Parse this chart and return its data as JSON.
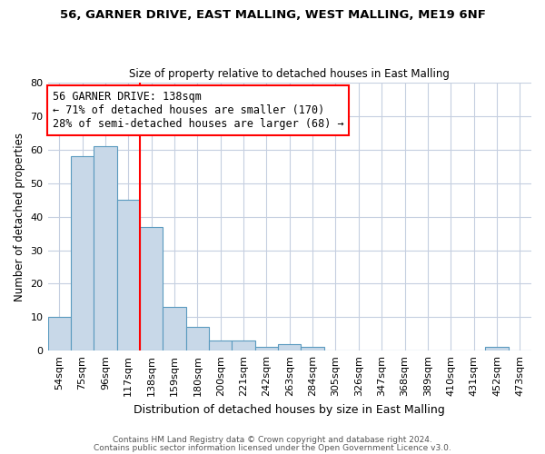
{
  "title1": "56, GARNER DRIVE, EAST MALLING, WEST MALLING, ME19 6NF",
  "title2": "Size of property relative to detached houses in East Malling",
  "xlabel": "Distribution of detached houses by size in East Malling",
  "ylabel": "Number of detached properties",
  "categories": [
    "54sqm",
    "75sqm",
    "96sqm",
    "117sqm",
    "138sqm",
    "159sqm",
    "180sqm",
    "200sqm",
    "221sqm",
    "242sqm",
    "263sqm",
    "284sqm",
    "305sqm",
    "326sqm",
    "347sqm",
    "368sqm",
    "389sqm",
    "410sqm",
    "431sqm",
    "452sqm",
    "473sqm"
  ],
  "values": [
    10,
    58,
    61,
    45,
    37,
    13,
    7,
    3,
    3,
    1,
    2,
    1,
    0,
    0,
    0,
    0,
    0,
    0,
    0,
    1,
    0
  ],
  "bar_color": "#c8d8e8",
  "bar_edge_color": "#5a9abf",
  "red_line_index": 3,
  "annotation_line1": "56 GARNER DRIVE: 138sqm",
  "annotation_line2": "← 71% of detached houses are smaller (170)",
  "annotation_line3": "28% of semi-detached houses are larger (68) →",
  "ylim": [
    0,
    80
  ],
  "yticks": [
    0,
    10,
    20,
    30,
    40,
    50,
    60,
    70,
    80
  ],
  "grid_color": "#c5cfe0",
  "background_color": "#ffffff",
  "footer1": "Contains HM Land Registry data © Crown copyright and database right 2024.",
  "footer2": "Contains public sector information licensed under the Open Government Licence v3.0."
}
